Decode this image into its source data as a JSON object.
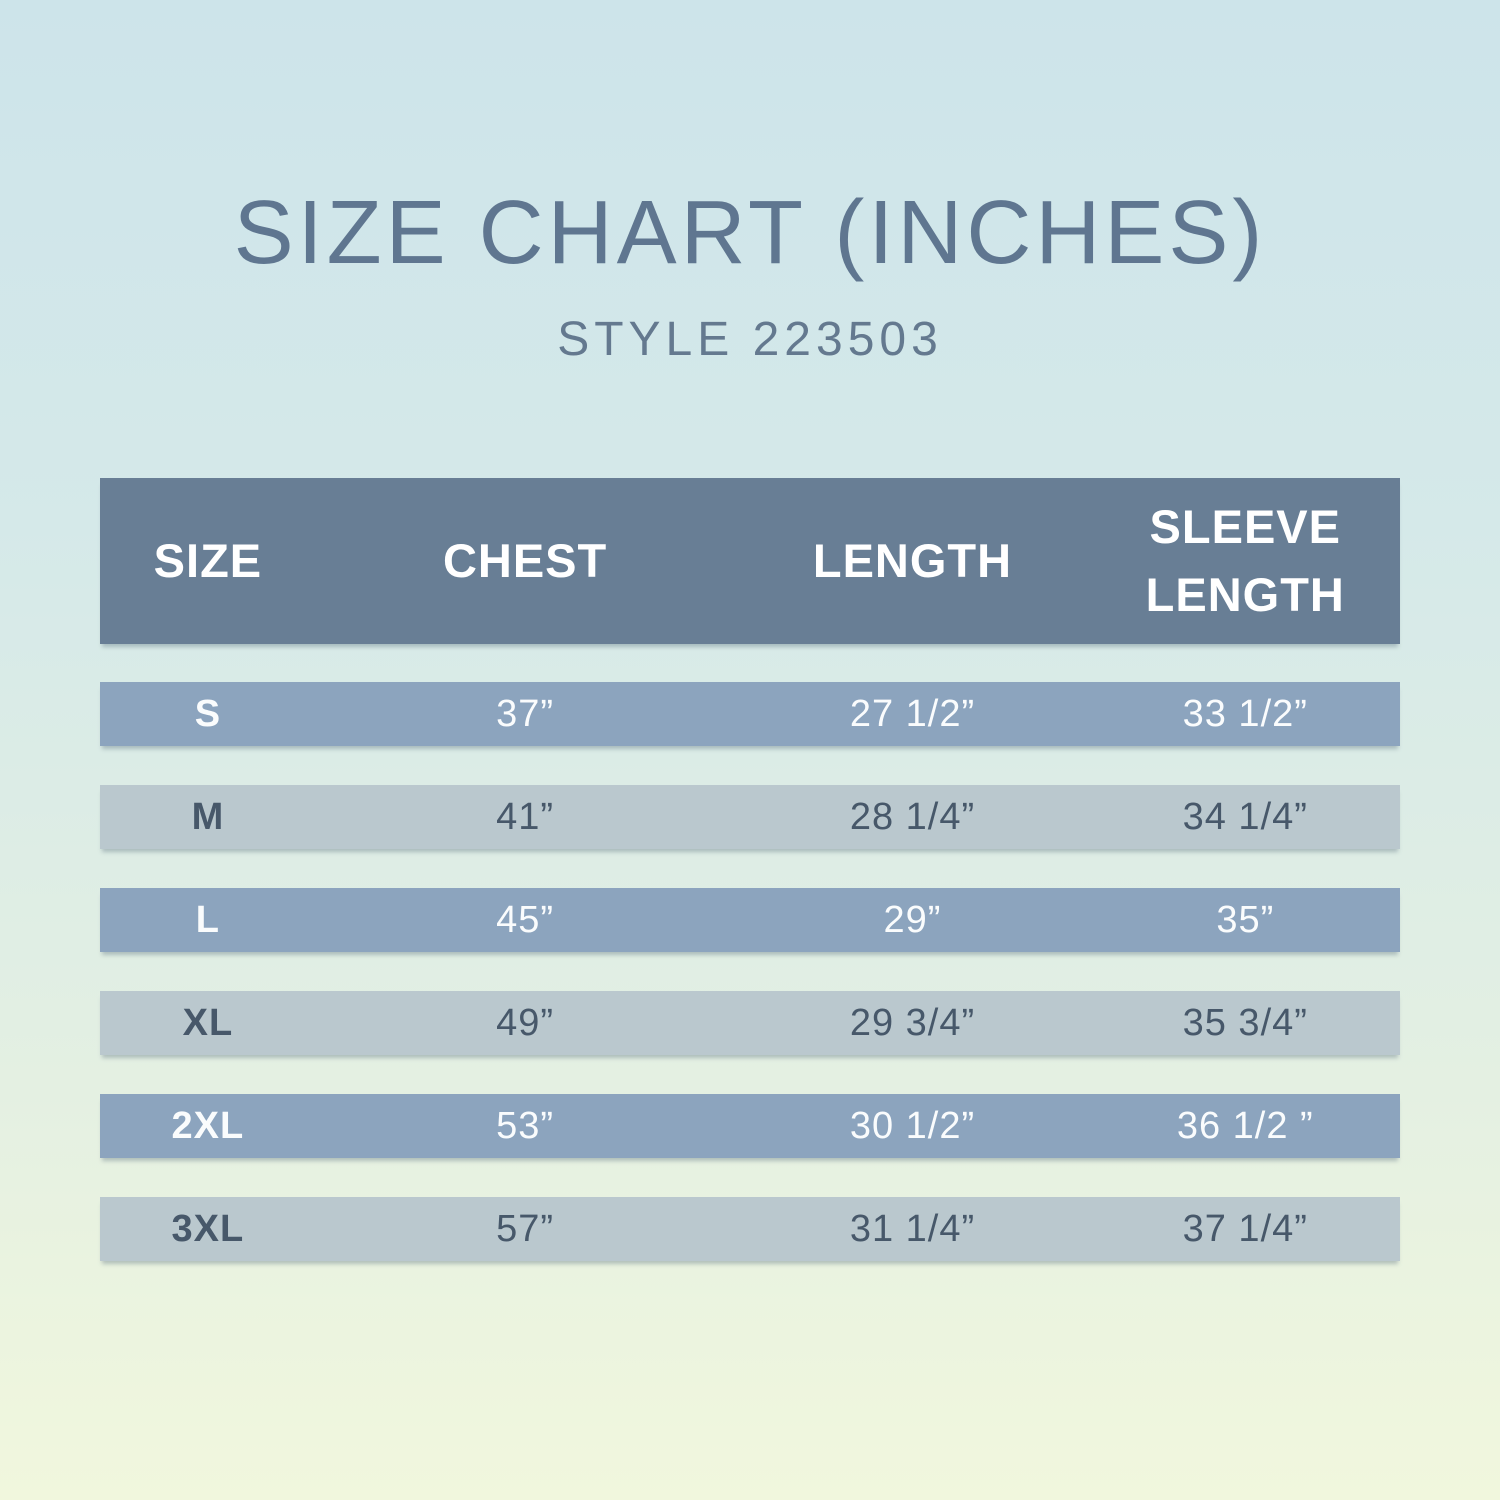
{
  "page": {
    "title": "SIZE CHART (INCHES)",
    "subtitle": "STYLE 223503"
  },
  "chart_data": {
    "type": "table",
    "title": "SIZE CHART (INCHES)",
    "subtitle": "STYLE 223503",
    "units": "inches",
    "columns": [
      "SIZE",
      "CHEST",
      "LENGTH",
      "SLEEVE LENGTH"
    ],
    "rows": [
      {
        "size": "S",
        "chest": "37”",
        "length": "27 1/2”",
        "sleeve_length": "33 1/2”"
      },
      {
        "size": "M",
        "chest": "41”",
        "length": "28 1/4”",
        "sleeve_length": "34 1/4”"
      },
      {
        "size": "L",
        "chest": "45”",
        "length": "29”",
        "sleeve_length": "35”"
      },
      {
        "size": "XL",
        "chest": "49”",
        "length": "29 3/4”",
        "sleeve_length": "35 3/4”"
      },
      {
        "size": "2XL",
        "chest": "53”",
        "length": "30 1/2”",
        "sleeve_length": "36 1/2 ”"
      },
      {
        "size": "3XL",
        "chest": "57”",
        "length": "31 1/4”",
        "sleeve_length": "37 1/4”"
      }
    ]
  },
  "colors": {
    "background_top": "#cde4ea",
    "background_bottom": "#f1f7dd",
    "header_bg": "#687e95",
    "row_dark_bg": "#8ca4be",
    "row_light_bg": "#bac8ce",
    "title_text": "#5f7690",
    "header_text": "#ffffff",
    "row_dark_text": "#fafcfd",
    "row_light_text": "#47586a"
  }
}
